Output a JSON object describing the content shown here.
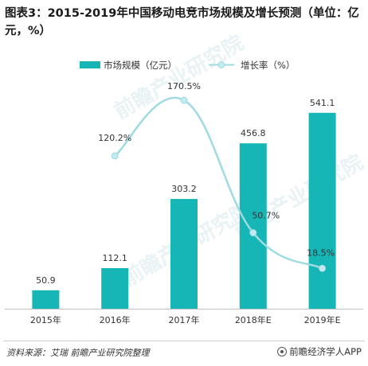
{
  "title": "图表3：2015-2019年中国移动电竞市场规模及增长预测（单位：亿元，%）",
  "source": "资料来源：艾瑞 前瞻产业研究院整理",
  "brand": "前瞻经济学人APP",
  "watermark": "前瞻产业研究院",
  "colors": {
    "bar": "#16b6b6",
    "line": "#9fdbe0",
    "point": "#c3ebef",
    "text": "#333333"
  },
  "chart_data": {
    "type": "bar",
    "categories": [
      "2015年",
      "2016年",
      "2017年",
      "2018年E",
      "2019年E"
    ],
    "series": [
      {
        "name": "市场规模（亿元）",
        "type": "bar",
        "values": [
          50.9,
          112.1,
          303.2,
          456.8,
          541.1
        ],
        "labels": [
          "50.9",
          "112.1",
          "303.2",
          "456.8",
          "541.1"
        ]
      },
      {
        "name": "增长率（%）",
        "type": "line",
        "axis": "secondary",
        "values": [
          null,
          120.2,
          170.5,
          50.7,
          18.5
        ],
        "labels": [
          "",
          "120.2%",
          "170.5%",
          "50.7%",
          "18.5%"
        ]
      }
    ],
    "legend_position": "top",
    "grid": false
  }
}
